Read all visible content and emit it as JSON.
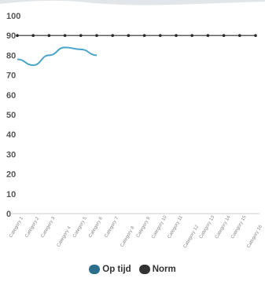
{
  "chart_data": {
    "type": "line",
    "title": "",
    "xlabel": "",
    "ylabel": "",
    "ylim": [
      0,
      100
    ],
    "y_ticks": [
      0,
      10,
      20,
      30,
      40,
      50,
      60,
      70,
      80,
      90,
      100
    ],
    "categories": [
      "Category 1",
      "Category 2",
      "Category 3",
      "Category 4",
      "Category 5",
      "Category 6",
      "Category 7",
      "Category 8",
      "Category 9",
      "Category 10",
      "Category 11",
      "Category 12",
      "Category 13",
      "Category 14",
      "Category 15",
      "Category 16"
    ],
    "series": [
      {
        "name": "Op tijd",
        "color": "#4aa3c9",
        "values": [
          78,
          75,
          80,
          84,
          83,
          80,
          null,
          null,
          null,
          null,
          null,
          null,
          null,
          null,
          null,
          null
        ]
      },
      {
        "name": "Norm",
        "color": "#2b2b2b",
        "values": [
          90,
          90,
          90,
          90,
          90,
          90,
          90,
          90,
          90,
          90,
          90,
          90,
          90,
          90,
          90,
          90
        ]
      }
    ],
    "grid": false,
    "legend_position": "bottom"
  },
  "legend": {
    "items": [
      {
        "label": "Op tijd"
      },
      {
        "label": "Norm"
      }
    ]
  }
}
